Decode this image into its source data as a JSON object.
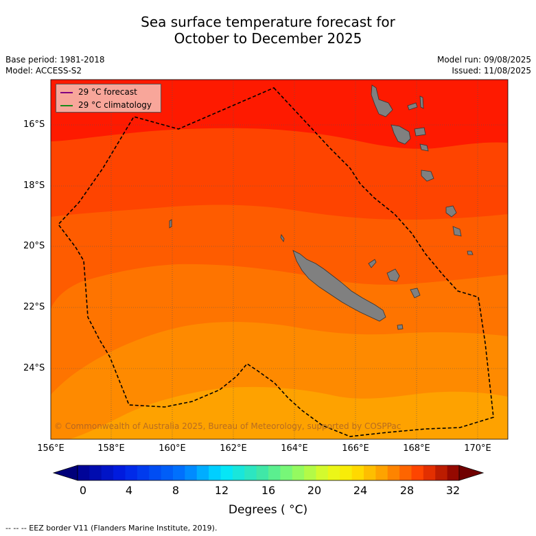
{
  "title": [
    "Sea surface temperature forecast for",
    "October to December 2025"
  ],
  "meta_left": [
    "Base period: 1981-2018",
    "Model: ACCESS-S2"
  ],
  "meta_right": [
    "Model run: 09/08/2025",
    "Issued: 11/08/2025"
  ],
  "legend": {
    "forecast": "29 °C  forecast",
    "climatology": "29 °C  climatology",
    "forecast_color": "#800080",
    "climatology_color": "#1a8a1a"
  },
  "lat_labels": [
    "16°S",
    "18°S",
    "20°S",
    "22°S",
    "24°S"
  ],
  "lon_labels": [
    "156°E",
    "158°E",
    "160°E",
    "162°E",
    "164°E",
    "166°E",
    "168°E",
    "170°E"
  ],
  "colorbar": {
    "labels": [
      "0",
      "4",
      "8",
      "12",
      "16",
      "20",
      "24",
      "28",
      "32"
    ],
    "title": "Degrees ( °C)",
    "min": 0,
    "max": 32,
    "step": 1
  },
  "copyright": "© Commonwealth of Australia 2025, Bureau of Meteorology, supported by COSPPac",
  "eez_note": "--  --  -- EEZ border V11 (Flanders Marine Institute, 2019).",
  "map_extent": {
    "lon": [
      156,
      171
    ],
    "lat": [
      -14.8,
      -26.5
    ]
  },
  "sst_band_colors": [
    "#fe1a00",
    "#fe4400",
    "#fe5c00",
    "#fe7400",
    "#fe8a00",
    "#fea200"
  ],
  "land_color": "#808080",
  "eez_color": "#000000"
}
